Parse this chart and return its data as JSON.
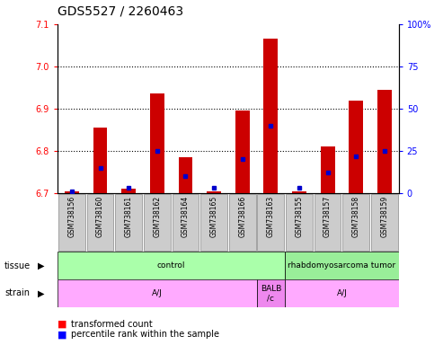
{
  "title": "GDS5527 / 2260463",
  "samples": [
    "GSM738156",
    "GSM738160",
    "GSM738161",
    "GSM738162",
    "GSM738164",
    "GSM738165",
    "GSM738166",
    "GSM738163",
    "GSM738155",
    "GSM738157",
    "GSM738158",
    "GSM738159"
  ],
  "transformed_count": [
    6.705,
    6.855,
    6.71,
    6.935,
    6.785,
    6.705,
    6.895,
    7.065,
    6.705,
    6.81,
    6.92,
    6.945
  ],
  "percentile_rank": [
    1,
    15,
    3,
    25,
    10,
    3,
    20,
    40,
    3,
    12,
    22,
    25
  ],
  "ylim_left": [
    6.7,
    7.1
  ],
  "ylim_right": [
    0,
    100
  ],
  "yticks_left": [
    6.7,
    6.8,
    6.9,
    7.0,
    7.1
  ],
  "yticks_right": [
    0,
    25,
    50,
    75,
    100
  ],
  "yticklabels_right": [
    "0",
    "25",
    "50",
    "75",
    "100%"
  ],
  "bar_base": 6.7,
  "bar_color": "#cc0000",
  "dot_color": "#0000cc",
  "tissue_groups": [
    {
      "label": "control",
      "start": 0,
      "end": 8,
      "color": "#aaffaa"
    },
    {
      "label": "rhabdomyosarcoma tumor",
      "start": 8,
      "end": 12,
      "color": "#99ee99"
    }
  ],
  "strain_groups": [
    {
      "label": "A/J",
      "start": 0,
      "end": 7,
      "color": "#ffaaff"
    },
    {
      "label": "BALB\n/c",
      "start": 7,
      "end": 8,
      "color": "#ee88ee"
    },
    {
      "label": "A/J",
      "start": 8,
      "end": 12,
      "color": "#ffaaff"
    }
  ],
  "legend_items": [
    {
      "color": "#cc0000",
      "label": "transformed count"
    },
    {
      "color": "#0000cc",
      "label": "percentile rank within the sample"
    }
  ],
  "title_fontsize": 10,
  "tick_fontsize": 7,
  "label_fontsize": 7,
  "sample_label_fontsize": 5.5
}
